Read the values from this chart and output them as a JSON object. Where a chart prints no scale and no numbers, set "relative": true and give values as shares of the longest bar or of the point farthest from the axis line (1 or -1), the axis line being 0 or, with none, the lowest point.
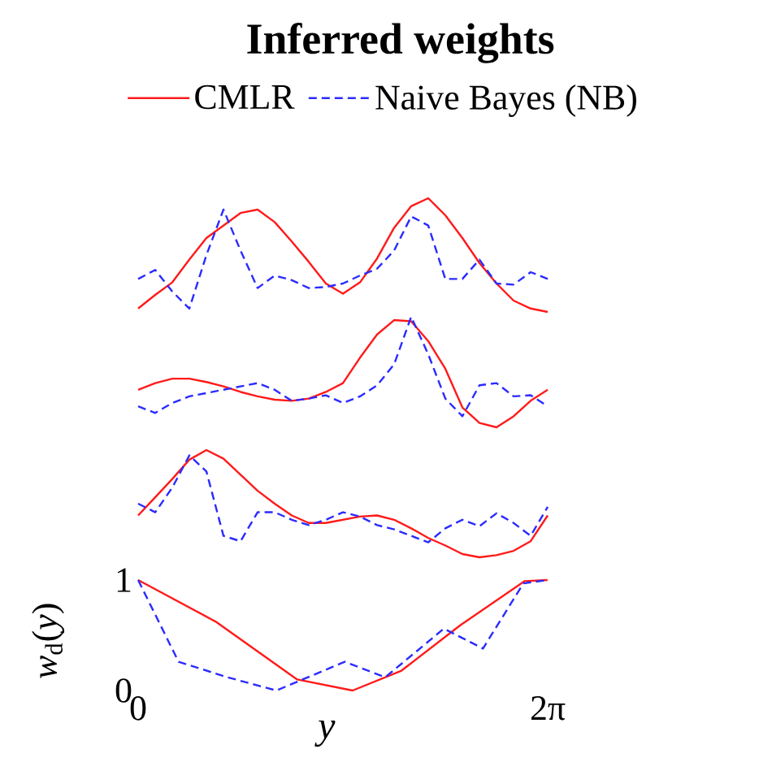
{
  "chart_data": [
    {
      "type": "line",
      "title": "Inferred weights",
      "relative": true,
      "legend": "top",
      "categories": [
        null,
        null,
        null,
        null,
        null,
        null,
        null,
        null,
        null,
        null,
        null,
        null,
        null,
        null,
        null,
        null,
        null,
        null,
        null,
        null,
        null,
        null,
        null,
        null,
        null
      ],
      "series": [
        {
          "name": "CMLR",
          "color": "#ff1a1a",
          "line_style": "solid",
          "values": [
            0.03,
            0.15,
            0.26,
            0.46,
            0.65,
            0.76,
            0.87,
            0.9,
            0.79,
            0.62,
            0.44,
            0.25,
            0.16,
            0.26,
            0.47,
            0.74,
            0.93,
            1.0,
            0.85,
            0.65,
            0.43,
            0.25,
            0.1,
            0.03,
            0
          ]
        },
        {
          "name": "Naive Bayes (NB)",
          "color": "#2b2bff",
          "line_style": "dashed",
          "values": [
            0.29,
            0.37,
            0.18,
            0.03,
            0.5,
            0.9,
            0.54,
            0.21,
            0.32,
            0.28,
            0.21,
            0.22,
            0.25,
            0.32,
            0.38,
            0.54,
            0.84,
            0.76,
            0.29,
            0.29,
            0.46,
            0.25,
            0.24,
            0.35,
            0.29
          ]
        }
      ]
    },
    {
      "type": "line",
      "relative": true,
      "categories": [
        null,
        null,
        null,
        null,
        null,
        null,
        null,
        null,
        null,
        null,
        null,
        null,
        null,
        null,
        null,
        null,
        null,
        null,
        null,
        null,
        null,
        null,
        null,
        null,
        null
      ],
      "series": [
        {
          "color": "#ff1a1a",
          "line_style": "solid",
          "values": [
            0.34,
            0.4,
            0.44,
            0.44,
            0.41,
            0.37,
            0.32,
            0.28,
            0.25,
            0.24,
            0.26,
            0.32,
            0.4,
            0.63,
            0.84,
            0.97,
            0.96,
            0.78,
            0.53,
            0.18,
            0.04,
            0,
            0.1,
            0.24,
            0.34
          ]
        },
        {
          "color": "#2b2bff",
          "line_style": "dashed",
          "values": [
            0.19,
            0.13,
            0.22,
            0.28,
            0.31,
            0.34,
            0.37,
            0.4,
            0.34,
            0.24,
            0.26,
            0.29,
            0.22,
            0.28,
            0.38,
            0.57,
            1.0,
            0.66,
            0.26,
            0.1,
            0.38,
            0.4,
            0.28,
            0.29,
            0.19
          ]
        }
      ]
    },
    {
      "type": "line",
      "relative": true,
      "categories": [
        null,
        null,
        null,
        null,
        null,
        null,
        null,
        null,
        null,
        null,
        null,
        null,
        null,
        null,
        null,
        null,
        null,
        null,
        null,
        null,
        null,
        null,
        null,
        null,
        null
      ],
      "series": [
        {
          "color": "#ff1a1a",
          "line_style": "solid",
          "values": [
            0.39,
            0.56,
            0.73,
            0.91,
            1.0,
            0.92,
            0.77,
            0.62,
            0.5,
            0.39,
            0.32,
            0.32,
            0.35,
            0.38,
            0.39,
            0.35,
            0.27,
            0.18,
            0.11,
            0.03,
            0,
            0.02,
            0.06,
            0.15,
            0.39
          ]
        },
        {
          "color": "#2b2bff",
          "line_style": "dashed",
          "values": [
            0.5,
            0.42,
            0.65,
            0.95,
            0.8,
            0.2,
            0.15,
            0.42,
            0.42,
            0.35,
            0.3,
            0.35,
            0.42,
            0.38,
            0.3,
            0.26,
            0.2,
            0.14,
            0.27,
            0.35,
            0.29,
            0.41,
            0.32,
            0.2,
            0.47
          ]
        }
      ]
    },
    {
      "type": "line",
      "xlabel": "y",
      "ylabel": "*w*$_{d}$(*y*)",
      "xlim": [
        0,
        6.283
      ],
      "ylim": [
        0,
        1
      ],
      "xticks": [
        {
          "value": 0,
          "label": "0"
        },
        {
          "value": 6.283,
          "label": "2π"
        }
      ],
      "yticks": [
        0,
        1
      ],
      "series": [
        {
          "color": "#ff1a1a",
          "line_style": "solid",
          "x": [
            0,
            1.2,
            2.44,
            3.29,
            4.04,
            4.94,
            5.93,
            6.28
          ],
          "values": [
            1.0,
            0.62,
            0.1,
            0,
            0.18,
            0.59,
            0.99,
            1.0
          ]
        },
        {
          "color": "#2b2bff",
          "line_style": "dashed",
          "x": [
            0,
            0.62,
            1.37,
            2.12,
            3.17,
            3.79,
            4.69,
            5.29,
            5.91,
            6.28
          ],
          "values": [
            1.0,
            0.26,
            0.12,
            0,
            0.26,
            0.12,
            0.56,
            0.38,
            0.97,
            1.0
          ]
        }
      ]
    }
  ]
}
